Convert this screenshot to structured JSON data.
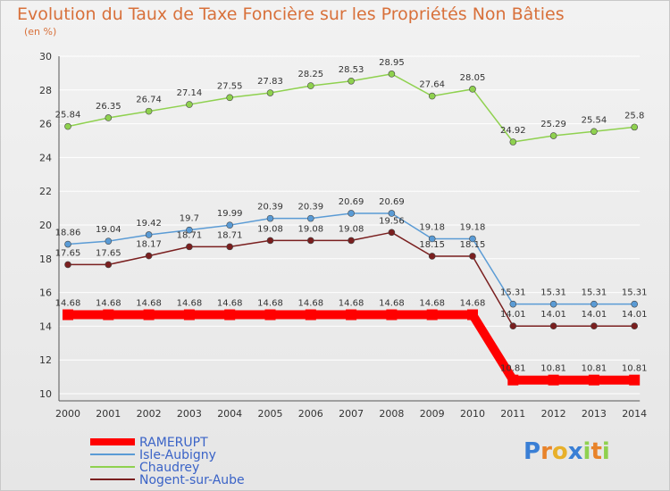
{
  "chart_data": {
    "type": "line",
    "title": "Evolution du Taux de Taxe Foncière sur les Propriétés Non Bâties",
    "subtitle": "(en %)",
    "ylim": [
      10,
      30
    ],
    "yticks": [
      "10",
      "12",
      "14",
      "16",
      "18",
      "20",
      "22",
      "24",
      "26",
      "28",
      "30"
    ],
    "categories": [
      "2000",
      "2001",
      "2002",
      "2003",
      "2004",
      "2005",
      "2006",
      "2007",
      "2008",
      "2009",
      "2010",
      "2011",
      "2012",
      "2013",
      "2014"
    ],
    "series": [
      {
        "name": "RAMERUPT",
        "color": "#ff0000",
        "values": [
          14.68,
          14.68,
          14.68,
          14.68,
          14.68,
          14.68,
          14.68,
          14.68,
          14.68,
          14.68,
          14.68,
          10.81,
          10.81,
          10.81,
          10.81
        ],
        "labels": [
          "14.68",
          "14.68",
          "14.68",
          "14.68",
          "14.68",
          "14.68",
          "14.68",
          "14.68",
          "14.68",
          "14.68",
          "14.68",
          "10.81",
          "10.81",
          "10.81",
          "10.81"
        ]
      },
      {
        "name": "Isle-Aubigny",
        "color": "#5a9bd5",
        "values": [
          18.86,
          19.04,
          19.42,
          19.7,
          19.99,
          20.39,
          20.39,
          20.69,
          20.69,
          19.18,
          19.18,
          15.31,
          15.31,
          15.31,
          15.31
        ],
        "labels": [
          "18.86",
          "19.04",
          "19.42",
          "19.7",
          "19.99",
          "20.39",
          "20.39",
          "20.69",
          "20.69",
          "19.18",
          "19.18",
          "15.31",
          "15.31",
          "15.31",
          "15.31"
        ]
      },
      {
        "name": "Chaudrey",
        "color": "#8fd14f",
        "values": [
          25.84,
          26.35,
          26.74,
          27.14,
          27.55,
          27.83,
          28.25,
          28.53,
          28.95,
          27.64,
          28.05,
          24.92,
          25.29,
          25.54,
          25.8
        ],
        "labels": [
          "25.84",
          "26.35",
          "26.74",
          "27.14",
          "27.55",
          "27.83",
          "28.25",
          "28.53",
          "28.95",
          "27.64",
          "28.05",
          "24.92",
          "25.29",
          "25.54",
          "25.8"
        ]
      },
      {
        "name": "Nogent-sur-Aube",
        "color": "#7a1f1f",
        "values": [
          17.65,
          17.65,
          18.17,
          18.71,
          18.71,
          19.08,
          19.08,
          19.08,
          19.56,
          18.15,
          18.15,
          14.01,
          14.01,
          14.01,
          14.01
        ],
        "labels": [
          "17.65",
          "17.65",
          "18.17",
          "18.71",
          "18.71",
          "19.08",
          "19.08",
          "19.08",
          "19.56",
          "18.15",
          "18.15",
          "14.01",
          "14.01",
          "14.01",
          "14.01"
        ]
      }
    ]
  },
  "logo": {
    "parts": [
      "P",
      "r",
      "o",
      "x",
      "i",
      "t",
      "i"
    ],
    "colors": [
      "#3a7fd5",
      "#e8832a",
      "#e8b02a",
      "#3a7fd5",
      "#8fd14f",
      "#e8832a",
      "#8fd14f"
    ]
  }
}
